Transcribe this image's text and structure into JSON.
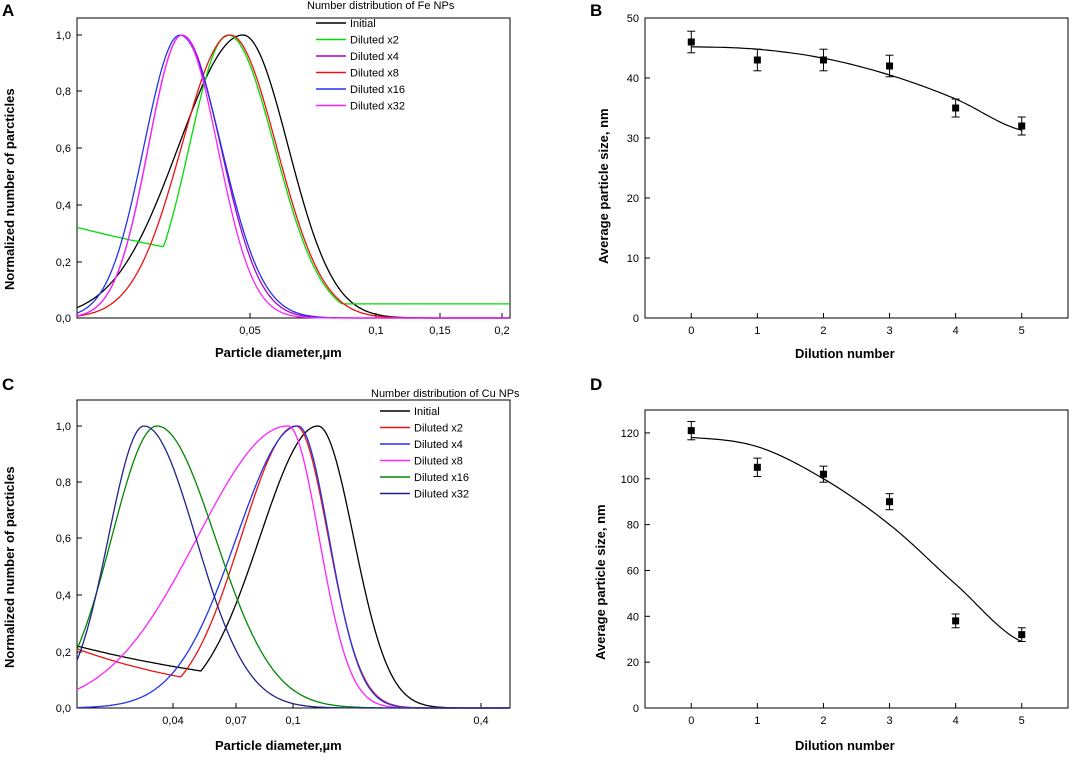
{
  "chart_data": [
    {
      "panel": "A",
      "type": "line",
      "xlabel": "Particle diameter,µm",
      "ylabel": "Normalized number of parcticles",
      "xticks": [
        "0,05",
        "0,1",
        "0,15",
        "0,2"
      ],
      "yticks": [
        "0,0",
        "0,2",
        "0,4",
        "0,6",
        "0,8",
        "1,0"
      ],
      "ylim": [
        0,
        1.05
      ],
      "legend_title": "Number distribution of Fe NPs",
      "legend_position": "top-right",
      "series": [
        {
          "name": "Initial",
          "color": "#000000",
          "peak_label": "0,05"
        },
        {
          "name": "Diluted x2",
          "color": "#00dd00"
        },
        {
          "name": "Diluted x4",
          "color": "#aa00cc"
        },
        {
          "name": "Diluted x8",
          "color": "#ee1111"
        },
        {
          "name": "Diluted x16",
          "color": "#2233ee"
        },
        {
          "name": "Diluted x32",
          "color": "#ff22ff"
        }
      ]
    },
    {
      "panel": "B",
      "type": "scatter",
      "xlabel": "Dilution number",
      "ylabel": "Average particle size, nm",
      "x": [
        0,
        1,
        2,
        3,
        4,
        5
      ],
      "y": [
        46,
        43,
        43,
        42,
        35,
        32
      ],
      "yerr": [
        1.8,
        1.8,
        1.8,
        1.8,
        1.5,
        1.5
      ],
      "fit": [
        45.2,
        44.8,
        43.3,
        40.5,
        36.5,
        31.3
      ],
      "xlim": [
        -0.7,
        5.7
      ],
      "ylim": [
        0,
        50
      ],
      "xticks": [
        "0",
        "1",
        "2",
        "3",
        "4",
        "5"
      ],
      "yticks": [
        "0",
        "10",
        "20",
        "30",
        "40",
        "50"
      ]
    },
    {
      "panel": "C",
      "type": "line",
      "xlabel": "Particle diameter,µm",
      "ylabel": "Normalized number of parcticles",
      "xticks": [
        "0,04",
        "0,07",
        "0,1",
        "0,4"
      ],
      "yticks": [
        "0,0",
        "0,2",
        "0,4",
        "0,6",
        "0,8",
        "1,0"
      ],
      "ylim": [
        0,
        1.05
      ],
      "legend_title": "Number distribution of Cu NPs",
      "legend_position": "top-right",
      "series": [
        {
          "name": "Initial",
          "color": "#000000"
        },
        {
          "name": "Diluted x2",
          "color": "#ee1111"
        },
        {
          "name": "Diluted x4",
          "color": "#2233ee"
        },
        {
          "name": "Diluted x8",
          "color": "#ff22ff"
        },
        {
          "name": "Diluted x16",
          "color": "#008800"
        },
        {
          "name": "Diluted x32",
          "color": "#22228a"
        }
      ]
    },
    {
      "panel": "D",
      "type": "scatter",
      "xlabel": "Dilution number",
      "ylabel": "Average particle size, nm",
      "x": [
        0,
        1,
        2,
        3,
        4,
        5
      ],
      "y": [
        121,
        105,
        102,
        90,
        38,
        32
      ],
      "yerr": [
        4,
        4,
        3.5,
        3.5,
        3,
        3
      ],
      "fit": [
        118,
        114,
        100,
        80,
        54,
        29
      ],
      "xlim": [
        -0.7,
        5.7
      ],
      "ylim": [
        0,
        130
      ],
      "xticks": [
        "0",
        "1",
        "2",
        "3",
        "4",
        "5"
      ],
      "yticks": [
        "0",
        "20",
        "40",
        "60",
        "80",
        "100",
        "120"
      ]
    }
  ]
}
